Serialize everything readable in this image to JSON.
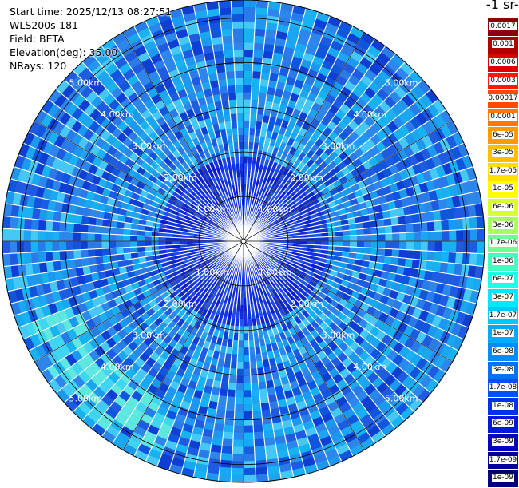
{
  "info": {
    "start_time": "Start time: 2025/12/13 08:27:51",
    "device": "WLS200s-181",
    "field": "Field: BETA",
    "elevation": "Elevation(deg): 35.00",
    "nrays": "NRays: 120"
  },
  "colorbar": {
    "unit_fragment": "-1 sr-",
    "labels": [
      "0.0017",
      "0.001",
      "0.0006",
      "0.0003",
      "0.00017",
      "0.0001",
      "6e-05",
      "3e-05",
      "1.7e-05",
      "1e-05",
      "6e-06",
      "3e-06",
      "1.7e-06",
      "1e-06",
      "6e-07",
      "3e-07",
      "1.7e-07",
      "1e-07",
      "6e-08",
      "3e-08",
      "1.7e-08",
      "1e-08",
      "6e-09",
      "3e-09",
      "1.7e-09",
      "1e-09"
    ],
    "colors": [
      "#8b0000",
      "#b00000",
      "#dd0000",
      "#ff1a00",
      "#ff4a00",
      "#ff7800",
      "#ff9a00",
      "#ffbf00",
      "#ffe000",
      "#ffff00",
      "#d8ff30",
      "#a8ff60",
      "#70ff90",
      "#40ffbf",
      "#1affe6",
      "#00e8ff",
      "#00c8ff",
      "#00aaff",
      "#008cff",
      "#0070ff",
      "#0050ff",
      "#0030f0",
      "#0018d8",
      "#0000c0",
      "#00009c",
      "#000078"
    ]
  },
  "chart_data": {
    "type": "ppi_scan",
    "field": "BETA",
    "elevation_deg": 35.0,
    "n_rays": 120,
    "max_range_km": 5.4,
    "range_rings_km": [
      1,
      2,
      3,
      4,
      5
    ],
    "ring_labels": [
      "1.00km",
      "2.00km",
      "3.00km",
      "4.00km",
      "5.00km"
    ],
    "azimuth_grid_deg": [
      0,
      30,
      60,
      90,
      120,
      150,
      180,
      210,
      240,
      270,
      300,
      330
    ],
    "typical_value": "6e-08",
    "near_field_value": "1e-08",
    "enhanced_band": {
      "range_km": [
        4.0,
        5.2
      ],
      "azimuth_deg": [
        200,
        250
      ],
      "value": "1.7e-07"
    }
  }
}
